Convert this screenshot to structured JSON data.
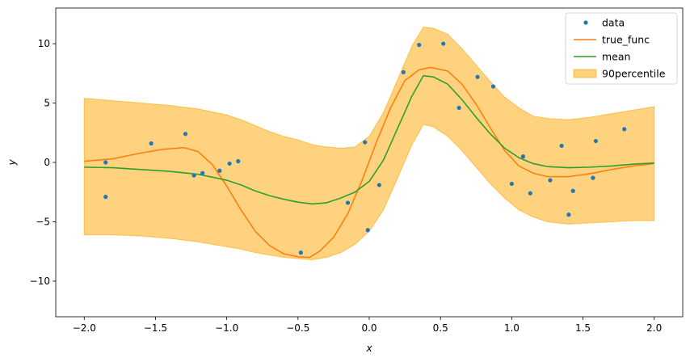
{
  "chart_data": {
    "type": "line",
    "title": "",
    "xlabel": "x",
    "ylabel": "y",
    "xlim": [
      -2.2,
      2.2
    ],
    "ylim": [
      -13,
      13
    ],
    "grid": false,
    "legend_position": "top-right",
    "x_ticks": [
      -2.0,
      -1.5,
      -1.0,
      -0.5,
      0.0,
      0.5,
      1.0,
      1.5,
      2.0
    ],
    "x_tick_labels": [
      "−2.0",
      "−1.5",
      "−1.0",
      "−0.5",
      "0.0",
      "0.5",
      "1.0",
      "1.5",
      "2.0"
    ],
    "y_ticks": [
      -10,
      -5,
      0,
      5,
      10
    ],
    "y_tick_labels": [
      "−10",
      "−5",
      "0",
      "5",
      "10"
    ],
    "legend": [
      {
        "label": "data",
        "kind": "marker",
        "color": "#1f77b4"
      },
      {
        "label": "true_func",
        "kind": "line",
        "color": "#ff7f0e"
      },
      {
        "label": "mean",
        "kind": "line",
        "color": "#2ca02c"
      },
      {
        "label": "90percentile",
        "kind": "patch",
        "color": "#ffa500"
      }
    ],
    "series": [
      {
        "name": "data",
        "kind": "scatter",
        "color": "#1f77b4",
        "x": [
          -1.85,
          -1.85,
          -1.53,
          -1.29,
          -1.23,
          -1.17,
          -1.05,
          -0.98,
          -0.92,
          -0.48,
          -0.15,
          -0.03,
          -0.01,
          0.07,
          0.24,
          0.35,
          0.52,
          0.63,
          0.76,
          0.87,
          1.0,
          1.08,
          1.13,
          1.27,
          1.35,
          1.4,
          1.43,
          1.57,
          1.59,
          1.79
        ],
        "y": [
          0.0,
          -2.9,
          1.6,
          2.4,
          -1.1,
          -0.9,
          -0.7,
          -0.1,
          0.1,
          -7.6,
          -3.4,
          1.7,
          -5.7,
          -1.9,
          7.6,
          9.9,
          10.0,
          4.6,
          7.2,
          6.4,
          -1.8,
          0.5,
          -2.6,
          -1.5,
          1.4,
          -4.4,
          -2.4,
          -1.3,
          1.8,
          2.8
        ]
      },
      {
        "name": "true_func",
        "kind": "line",
        "color": "#ff7f0e",
        "x": [
          -2.0,
          -1.8,
          -1.6,
          -1.45,
          -1.3,
          -1.2,
          -1.1,
          -1.0,
          -0.9,
          -0.8,
          -0.7,
          -0.6,
          -0.5,
          -0.42,
          -0.35,
          -0.25,
          -0.15,
          -0.05,
          0.05,
          0.15,
          0.25,
          0.35,
          0.43,
          0.55,
          0.65,
          0.75,
          0.85,
          0.95,
          1.05,
          1.15,
          1.25,
          1.4,
          1.55,
          1.7,
          1.85,
          2.0
        ],
        "y": [
          0.1,
          0.3,
          0.8,
          1.1,
          1.25,
          0.9,
          -0.2,
          -2.0,
          -4.0,
          -5.8,
          -7.0,
          -7.7,
          -7.95,
          -8.0,
          -7.5,
          -6.3,
          -4.3,
          -1.5,
          1.7,
          4.6,
          6.9,
          7.8,
          8.0,
          7.7,
          6.6,
          4.9,
          2.9,
          1.0,
          -0.3,
          -0.9,
          -1.2,
          -1.2,
          -0.95,
          -0.6,
          -0.3,
          -0.1
        ]
      },
      {
        "name": "mean",
        "kind": "line",
        "color": "#2ca02c",
        "x": [
          -2.0,
          -1.8,
          -1.6,
          -1.4,
          -1.2,
          -1.0,
          -0.9,
          -0.8,
          -0.7,
          -0.6,
          -0.5,
          -0.4,
          -0.3,
          -0.2,
          -0.1,
          0.0,
          0.1,
          0.2,
          0.3,
          0.38,
          0.45,
          0.55,
          0.65,
          0.75,
          0.85,
          0.95,
          1.05,
          1.15,
          1.25,
          1.4,
          1.55,
          1.7,
          1.85,
          2.0
        ],
        "y": [
          -0.4,
          -0.45,
          -0.6,
          -0.75,
          -1.0,
          -1.5,
          -1.9,
          -2.4,
          -2.8,
          -3.1,
          -3.35,
          -3.5,
          -3.4,
          -3.0,
          -2.5,
          -1.6,
          0.2,
          2.9,
          5.6,
          7.3,
          7.2,
          6.6,
          5.3,
          3.8,
          2.4,
          1.2,
          0.4,
          -0.1,
          -0.35,
          -0.45,
          -0.4,
          -0.3,
          -0.15,
          -0.05
        ]
      },
      {
        "name": "90percentile",
        "kind": "band",
        "color": "#ffa500",
        "x": [
          -2.0,
          -1.8,
          -1.6,
          -1.4,
          -1.2,
          -1.0,
          -0.9,
          -0.8,
          -0.7,
          -0.6,
          -0.5,
          -0.4,
          -0.3,
          -0.2,
          -0.1,
          0.0,
          0.1,
          0.2,
          0.3,
          0.38,
          0.45,
          0.55,
          0.65,
          0.75,
          0.85,
          0.95,
          1.05,
          1.15,
          1.25,
          1.4,
          1.55,
          1.7,
          1.85,
          2.0
        ],
        "lower": [
          -6.1,
          -6.1,
          -6.2,
          -6.4,
          -6.7,
          -7.1,
          -7.3,
          -7.6,
          -7.8,
          -8.0,
          -8.1,
          -8.2,
          -8.0,
          -7.6,
          -6.9,
          -5.8,
          -4.0,
          -1.3,
          1.5,
          3.2,
          3.0,
          2.2,
          1.0,
          -0.4,
          -1.8,
          -3.0,
          -4.0,
          -4.6,
          -5.0,
          -5.2,
          -5.1,
          -5.0,
          -4.9,
          -4.9
        ],
        "upper": [
          5.4,
          5.2,
          5.0,
          4.8,
          4.5,
          4.0,
          3.6,
          3.1,
          2.6,
          2.2,
          1.9,
          1.5,
          1.3,
          1.2,
          1.3,
          2.2,
          4.2,
          7.0,
          9.8,
          11.4,
          11.3,
          10.8,
          9.6,
          8.2,
          6.8,
          5.5,
          4.6,
          3.9,
          3.7,
          3.6,
          3.8,
          4.1,
          4.4,
          4.7
        ]
      }
    ]
  }
}
